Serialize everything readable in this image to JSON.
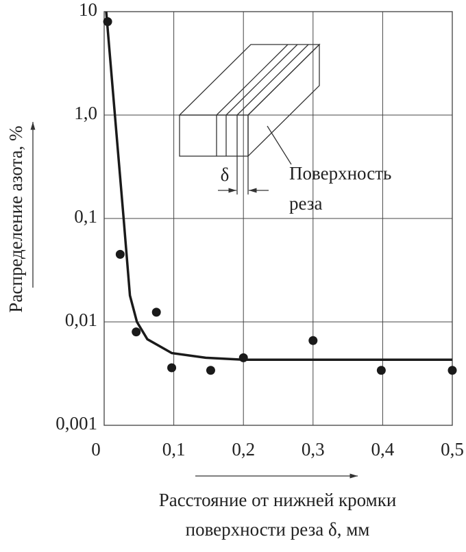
{
  "chart_data": {
    "type": "scatter",
    "y_label": "Распределение азота, %",
    "x_label": [
      "Расстояние от нижней кромки",
      "поверхности реза δ, мм"
    ],
    "inset": {
      "delta": "δ",
      "label": [
        "Поверхность",
        "реза"
      ]
    },
    "log_y": true,
    "grid": true,
    "xlim": [
      0,
      0.5
    ],
    "ylim": [
      0.001,
      10
    ],
    "xticks": [
      0,
      {
        "value": 0.1,
        "label": "0,1"
      },
      {
        "value": 0.2,
        "label": "0,2"
      },
      {
        "value": 0.3,
        "label": "0,3"
      },
      {
        "value": 0.4,
        "label": "0,4"
      },
      {
        "value": 0.5,
        "label": "0,5"
      }
    ],
    "yticks": [
      {
        "value": 0.001,
        "label": "0,001"
      },
      {
        "value": 0.01,
        "label": "0,01"
      },
      {
        "value": 0.1,
        "label": "0,1"
      },
      {
        "value": 1,
        "label": "1,0"
      },
      10
    ],
    "series": [
      {
        "type": "scatter",
        "color": "#1a1a1a",
        "x": [
          0.005,
          0.023,
          0.046,
          0.075,
          0.097,
          0.153,
          0.2,
          0.3,
          0.398,
          0.5
        ],
        "values": [
          8,
          0.045,
          0.008,
          0.0124,
          0.0036,
          0.0034,
          0.0045,
          0.0066,
          0.0034,
          0.0034
        ]
      },
      {
        "type": "line",
        "color": "#1a1a1a",
        "x": [
          0.003,
          0.018,
          0.028,
          0.037,
          0.047,
          0.062,
          0.097,
          0.146,
          0.2,
          0.5
        ],
        "values": [
          10,
          0.62,
          0.1,
          0.018,
          0.01,
          0.0068,
          0.005,
          0.0045,
          0.0043,
          0.0043
        ]
      }
    ]
  }
}
